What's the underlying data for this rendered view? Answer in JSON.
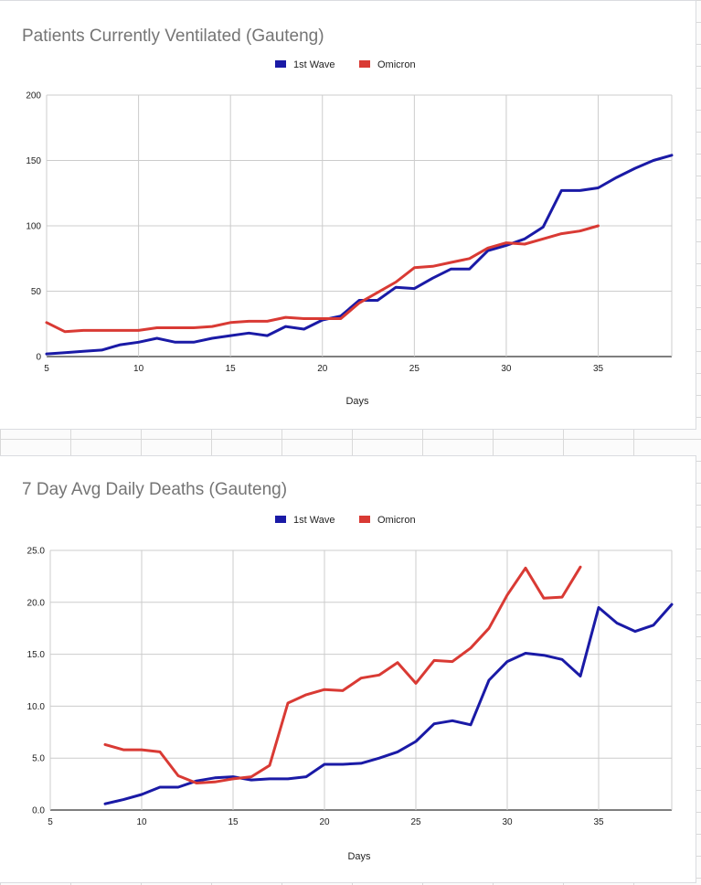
{
  "chart_data": [
    {
      "type": "line",
      "title": "Patients Currently Ventilated (Gauteng)",
      "xlabel": "Days",
      "ylabel": "",
      "xlim": [
        5,
        39
      ],
      "ylim": [
        0,
        200
      ],
      "x_ticks": [
        "5",
        "10",
        "15",
        "20",
        "25",
        "30",
        "35"
      ],
      "y_ticks": [
        "0",
        "50",
        "100",
        "150",
        "200"
      ],
      "grid": true,
      "legend": "top-center",
      "series": [
        {
          "name": "1st Wave",
          "color": "#1a1aa6",
          "points": [
            [
              5,
              2
            ],
            [
              6,
              3
            ],
            [
              7,
              4
            ],
            [
              8,
              5
            ],
            [
              9,
              9
            ],
            [
              10,
              11
            ],
            [
              11,
              14
            ],
            [
              12,
              11
            ],
            [
              13,
              11
            ],
            [
              14,
              14
            ],
            [
              15,
              16
            ],
            [
              16,
              18
            ],
            [
              17,
              16
            ],
            [
              18,
              23
            ],
            [
              19,
              21
            ],
            [
              20,
              28
            ],
            [
              21,
              31
            ],
            [
              22,
              43
            ],
            [
              23,
              43
            ],
            [
              24,
              53
            ],
            [
              25,
              52
            ],
            [
              26,
              60
            ],
            [
              27,
              67
            ],
            [
              28,
              67
            ],
            [
              29,
              81
            ],
            [
              30,
              85
            ],
            [
              31,
              90
            ],
            [
              32,
              99
            ],
            [
              33,
              127
            ],
            [
              34,
              127
            ],
            [
              35,
              129
            ],
            [
              36,
              137
            ],
            [
              37,
              144
            ],
            [
              38,
              150
            ],
            [
              39,
              154
            ]
          ]
        },
        {
          "name": "Omicron",
          "color": "#d93a34",
          "points": [
            [
              5,
              26
            ],
            [
              6,
              19
            ],
            [
              7,
              20
            ],
            [
              8,
              20
            ],
            [
              9,
              20
            ],
            [
              10,
              20
            ],
            [
              11,
              22
            ],
            [
              12,
              22
            ],
            [
              13,
              22
            ],
            [
              14,
              23
            ],
            [
              15,
              26
            ],
            [
              16,
              27
            ],
            [
              17,
              27
            ],
            [
              18,
              30
            ],
            [
              19,
              29
            ],
            [
              20,
              29
            ],
            [
              21,
              29
            ],
            [
              22,
              41
            ],
            [
              23,
              49
            ],
            [
              24,
              57
            ],
            [
              25,
              68
            ],
            [
              26,
              69
            ],
            [
              27,
              72
            ],
            [
              28,
              75
            ],
            [
              29,
              83
            ],
            [
              30,
              87
            ],
            [
              31,
              86
            ],
            [
              32,
              90
            ],
            [
              33,
              94
            ],
            [
              34,
              96
            ],
            [
              35,
              100
            ]
          ]
        }
      ]
    },
    {
      "type": "line",
      "title": "7 Day Avg Daily Deaths (Gauteng)",
      "xlabel": "Days",
      "ylabel": "",
      "xlim": [
        5,
        39
      ],
      "ylim": [
        0,
        25
      ],
      "x_ticks": [
        "5",
        "10",
        "15",
        "20",
        "25",
        "30",
        "35"
      ],
      "y_ticks": [
        "0.0",
        "5.0",
        "10.0",
        "15.0",
        "20.0",
        "25.0"
      ],
      "grid": true,
      "legend": "top-center",
      "series": [
        {
          "name": "1st Wave",
          "color": "#1a1aa6",
          "points": [
            [
              8,
              0.6
            ],
            [
              9,
              1.0
            ],
            [
              10,
              1.5
            ],
            [
              11,
              2.2
            ],
            [
              12,
              2.2
            ],
            [
              13,
              2.8
            ],
            [
              14,
              3.1
            ],
            [
              15,
              3.2
            ],
            [
              16,
              2.9
            ],
            [
              17,
              3.0
            ],
            [
              18,
              3.0
            ],
            [
              19,
              3.2
            ],
            [
              20,
              4.4
            ],
            [
              21,
              4.4
            ],
            [
              22,
              4.5
            ],
            [
              23,
              5.0
            ],
            [
              24,
              5.6
            ],
            [
              25,
              6.6
            ],
            [
              26,
              8.3
            ],
            [
              27,
              8.6
            ],
            [
              28,
              8.2
            ],
            [
              29,
              12.5
            ],
            [
              30,
              14.3
            ],
            [
              31,
              15.1
            ],
            [
              32,
              14.9
            ],
            [
              33,
              14.5
            ],
            [
              34,
              12.9
            ],
            [
              35,
              19.5
            ],
            [
              36,
              18.0
            ],
            [
              37,
              17.2
            ],
            [
              38,
              17.8
            ],
            [
              39,
              19.8
            ]
          ]
        },
        {
          "name": "Omicron",
          "color": "#d93a34",
          "points": [
            [
              8,
              6.3
            ],
            [
              9,
              5.8
            ],
            [
              10,
              5.8
            ],
            [
              11,
              5.6
            ],
            [
              12,
              3.3
            ],
            [
              13,
              2.6
            ],
            [
              14,
              2.7
            ],
            [
              15,
              3.0
            ],
            [
              16,
              3.2
            ],
            [
              17,
              4.3
            ],
            [
              18,
              10.3
            ],
            [
              19,
              11.1
            ],
            [
              20,
              11.6
            ],
            [
              21,
              11.5
            ],
            [
              22,
              12.7
            ],
            [
              23,
              13.0
            ],
            [
              24,
              14.2
            ],
            [
              25,
              12.2
            ],
            [
              26,
              14.4
            ],
            [
              27,
              14.3
            ],
            [
              28,
              15.6
            ],
            [
              29,
              17.5
            ],
            [
              30,
              20.7
            ],
            [
              31,
              23.3
            ],
            [
              32,
              20.4
            ],
            [
              33,
              20.5
            ],
            [
              34,
              23.4
            ]
          ]
        }
      ]
    }
  ]
}
